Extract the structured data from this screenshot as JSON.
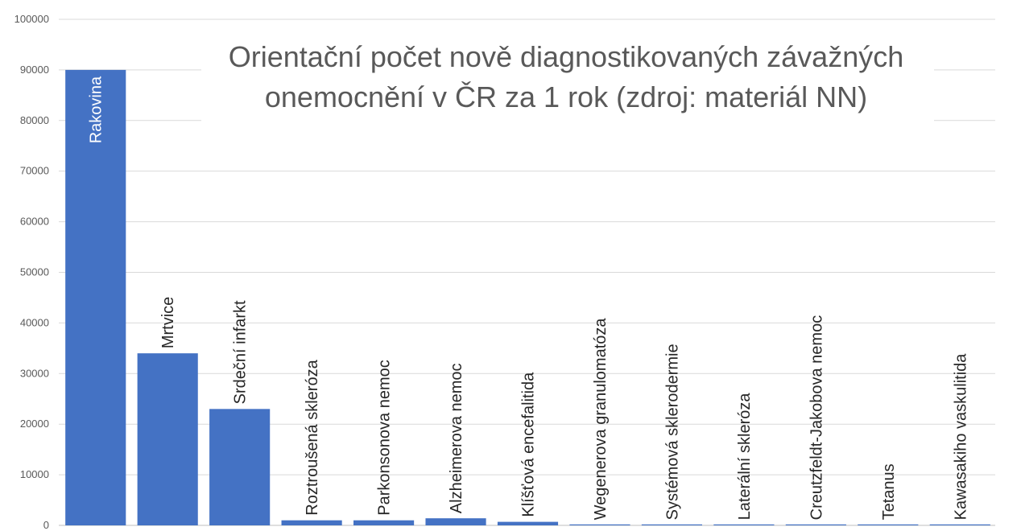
{
  "chart_data": {
    "type": "bar",
    "title": [
      "Orientační počet nově diagnostikovaných závažných",
      "onemocnění v ČR za 1 rok (zdroj: materiál NN)"
    ],
    "xlabel": "",
    "ylabel": "",
    "ylim": [
      0,
      100000
    ],
    "yticks": [
      "0",
      "10000",
      "20000",
      "30000",
      "40000",
      "50000",
      "60000",
      "70000",
      "80000",
      "90000",
      "100000"
    ],
    "grid": true,
    "legend": "none",
    "categories": [
      "Rakovina",
      "Mrtvice",
      "Srdeční infarkt",
      "Roztroušená skleróza",
      "Parkonsonova nemoc",
      "Alzheimerova nemoc",
      "Klíšťová encefalitida",
      "Wegenerova granulomatóza",
      "Systémová sklerodermie",
      "Laterální skleróza",
      "Creutzfeldt-Jakobova nemoc",
      "Tetanus",
      "Kawasakiho vaskulitida"
    ],
    "values": [
      90000,
      34000,
      23000,
      1000,
      1000,
      1400,
      700,
      100,
      100,
      100,
      100,
      100,
      100
    ],
    "colors": {
      "bar": "#4472C4",
      "grid": "#d9d9d9",
      "axis": "#bfbfbf",
      "title": "#595959",
      "tick": "#595959",
      "label": "#262626"
    }
  }
}
